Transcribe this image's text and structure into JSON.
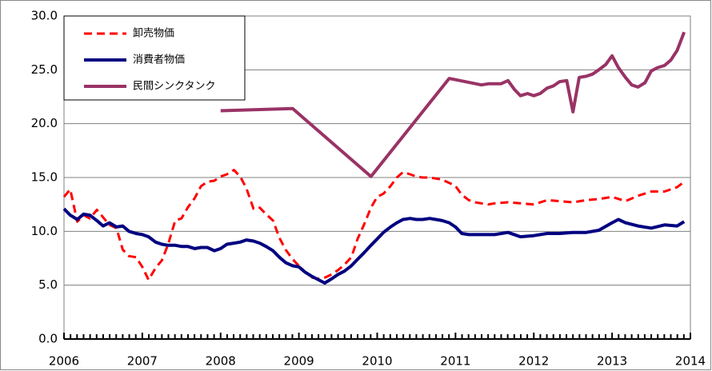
{
  "chart_data": {
    "type": "line",
    "xlim": [
      2006,
      2014
    ],
    "xticks": [
      2006,
      2007,
      2008,
      2009,
      2010,
      2011,
      2012,
      2013,
      2014
    ],
    "ylim": [
      0,
      30
    ],
    "yticks": [
      {
        "value": 0,
        "label": "0.0"
      },
      {
        "value": 5,
        "label": "5.0"
      },
      {
        "value": 10,
        "label": "10.0"
      },
      {
        "value": 15,
        "label": "15.0"
      },
      {
        "value": 20,
        "label": "20.0"
      },
      {
        "value": 25,
        "label": "25.0"
      },
      {
        "value": 30,
        "label": "30.0"
      }
    ],
    "grid": true,
    "legend": "upper left",
    "series": [
      {
        "name": "卸売物価",
        "color": "#ff0000",
        "dashed": true,
        "x": [
          2006,
          2006.08,
          2006.17,
          2006.25,
          2006.33,
          2006.42,
          2006.5,
          2006.58,
          2006.67,
          2006.75,
          2006.83,
          2006.92,
          2007,
          2007.08,
          2007.17,
          2007.25,
          2007.33,
          2007.42,
          2007.5,
          2007.58,
          2007.67,
          2007.75,
          2007.83,
          2007.92,
          2008,
          2008.08,
          2008.17,
          2008.25,
          2008.33,
          2008.42,
          2008.5,
          2008.58,
          2008.67,
          2008.75,
          2008.83,
          2008.92,
          2009,
          2009.08,
          2009.17,
          2009.25,
          2009.33,
          2009.42,
          2009.5,
          2009.58,
          2009.67,
          2009.75,
          2009.83,
          2009.92,
          2010,
          2010.08,
          2010.17,
          2010.25,
          2010.33,
          2010.42,
          2010.5,
          2010.58,
          2010.67,
          2010.75,
          2010.83,
          2010.92,
          2011,
          2011.08,
          2011.17,
          2011.25,
          2011.33,
          2011.42,
          2011.5,
          2011.67,
          2011.83,
          2012,
          2012.17,
          2012.33,
          2012.5,
          2012.67,
          2012.83,
          2013,
          2013.17,
          2013.33,
          2013.5,
          2013.67,
          2013.83,
          2013.92
        ],
        "values": [
          13.2,
          13.9,
          10.9,
          11.5,
          11.2,
          12.0,
          11.3,
          10.6,
          10.3,
          8.3,
          7.7,
          7.6,
          6.7,
          5.5,
          6.6,
          7.3,
          8.8,
          11.0,
          11.2,
          12.2,
          13.1,
          14.2,
          14.6,
          14.7,
          15.1,
          15.3,
          15.7,
          15.1,
          14.0,
          12.1,
          12.2,
          11.6,
          11.0,
          9.4,
          8.3,
          7.4,
          6.8,
          6.2,
          5.7,
          5.6,
          5.7,
          6.0,
          6.4,
          6.9,
          7.6,
          9.3,
          10.6,
          12.2,
          13.2,
          13.5,
          14.2,
          15.0,
          15.5,
          15.3,
          15.1,
          15.0,
          15.0,
          14.9,
          14.8,
          14.5,
          14.2,
          13.4,
          12.9,
          12.7,
          12.6,
          12.5,
          12.6,
          12.7,
          12.6,
          12.5,
          12.9,
          12.8,
          12.7,
          12.9,
          13.0,
          13.2,
          12.8,
          13.3,
          13.7,
          13.7,
          14.1,
          14.6
        ]
      },
      {
        "name": "消費者物価",
        "color": "#000080",
        "dashed": false,
        "x": [
          2006,
          2006.08,
          2006.17,
          2006.25,
          2006.33,
          2006.42,
          2006.5,
          2006.58,
          2006.67,
          2006.75,
          2006.83,
          2006.92,
          2007,
          2007.08,
          2007.17,
          2007.25,
          2007.33,
          2007.42,
          2007.5,
          2007.58,
          2007.67,
          2007.75,
          2007.83,
          2007.92,
          2008,
          2008.08,
          2008.17,
          2008.25,
          2008.33,
          2008.42,
          2008.5,
          2008.58,
          2008.67,
          2008.75,
          2008.83,
          2008.92,
          2009,
          2009.08,
          2009.17,
          2009.25,
          2009.33,
          2009.42,
          2009.5,
          2009.58,
          2009.67,
          2009.75,
          2009.83,
          2009.92,
          2010,
          2010.08,
          2010.17,
          2010.25,
          2010.33,
          2010.42,
          2010.5,
          2010.58,
          2010.67,
          2010.75,
          2010.83,
          2010.92,
          2011,
          2011.08,
          2011.17,
          2011.33,
          2011.5,
          2011.67,
          2011.83,
          2012,
          2012.17,
          2012.33,
          2012.5,
          2012.67,
          2012.83,
          2013,
          2013.08,
          2013.17,
          2013.33,
          2013.5,
          2013.67,
          2013.83,
          2013.92
        ],
        "values": [
          12.1,
          11.5,
          11.1,
          11.6,
          11.5,
          11.0,
          10.5,
          10.8,
          10.4,
          10.5,
          10.0,
          9.8,
          9.7,
          9.5,
          9.0,
          8.8,
          8.7,
          8.7,
          8.6,
          8.6,
          8.4,
          8.5,
          8.5,
          8.2,
          8.4,
          8.8,
          8.9,
          9.0,
          9.2,
          9.1,
          8.9,
          8.6,
          8.2,
          7.6,
          7.1,
          6.8,
          6.7,
          6.2,
          5.8,
          5.5,
          5.2,
          5.6,
          6.0,
          6.3,
          6.8,
          7.4,
          8.0,
          8.7,
          9.3,
          9.9,
          10.4,
          10.8,
          11.1,
          11.2,
          11.1,
          11.1,
          11.2,
          11.1,
          11.0,
          10.8,
          10.4,
          9.8,
          9.7,
          9.7,
          9.7,
          9.9,
          9.5,
          9.6,
          9.8,
          9.8,
          9.9,
          9.9,
          10.1,
          10.8,
          11.1,
          10.8,
          10.5,
          10.3,
          10.6,
          10.5,
          10.9
        ]
      },
      {
        "name": "民間シンクタンク",
        "color": "#993366",
        "dashed": false,
        "x": [
          2008,
          2008.92,
          2009.92,
          2010.92,
          2011.33,
          2011.42,
          2011.58,
          2011.67,
          2011.75,
          2011.83,
          2011.92,
          2012,
          2012.08,
          2012.17,
          2012.25,
          2012.33,
          2012.42,
          2012.5,
          2012.58,
          2012.67,
          2012.75,
          2012.83,
          2012.92,
          2013,
          2013.08,
          2013.17,
          2013.25,
          2013.33,
          2013.42,
          2013.5,
          2013.58,
          2013.67,
          2013.75,
          2013.83,
          2013.92
        ],
        "values": [
          21.2,
          21.4,
          15.1,
          24.2,
          23.6,
          23.7,
          23.7,
          24.0,
          23.2,
          22.6,
          22.8,
          22.6,
          22.8,
          23.3,
          23.5,
          23.9,
          24.0,
          21.1,
          24.3,
          24.4,
          24.6,
          25.0,
          25.5,
          26.3,
          25.2,
          24.3,
          23.6,
          23.4,
          23.8,
          24.9,
          25.2,
          25.4,
          25.9,
          26.8,
          28.5
        ]
      }
    ]
  }
}
